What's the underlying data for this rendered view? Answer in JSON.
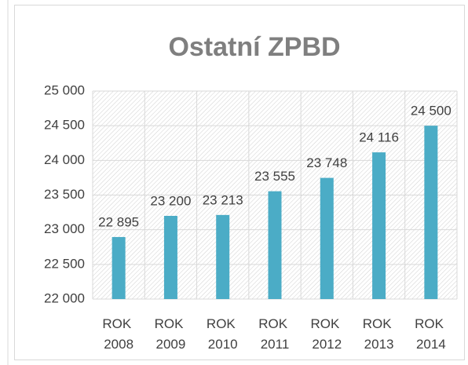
{
  "chart_data": {
    "type": "bar",
    "title": "Ostatní ZPBD",
    "categories": [
      "ROK 2008",
      "ROK 2009",
      "ROK 2010",
      "ROK 2011",
      "ROK 2012",
      "ROK 2013",
      "ROK 2014"
    ],
    "values": [
      22895,
      23200,
      23213,
      23555,
      23748,
      24116,
      24500
    ],
    "value_labels": [
      "22 895",
      "23 200",
      "23 213",
      "23 555",
      "23 748",
      "24 116",
      "24 500"
    ],
    "color": "#4bacc6",
    "ylim": [
      22000,
      25000
    ],
    "yticks": [
      {
        "value": 22000,
        "label": "22 000"
      },
      {
        "value": 22500,
        "label": "22 500"
      },
      {
        "value": 23000,
        "label": "23 000"
      },
      {
        "value": 23500,
        "label": "23 500"
      },
      {
        "value": 24000,
        "label": "24 000"
      },
      {
        "value": 24500,
        "label": "24 500"
      },
      {
        "value": 25000,
        "label": "25 000"
      }
    ],
    "grid": true
  }
}
